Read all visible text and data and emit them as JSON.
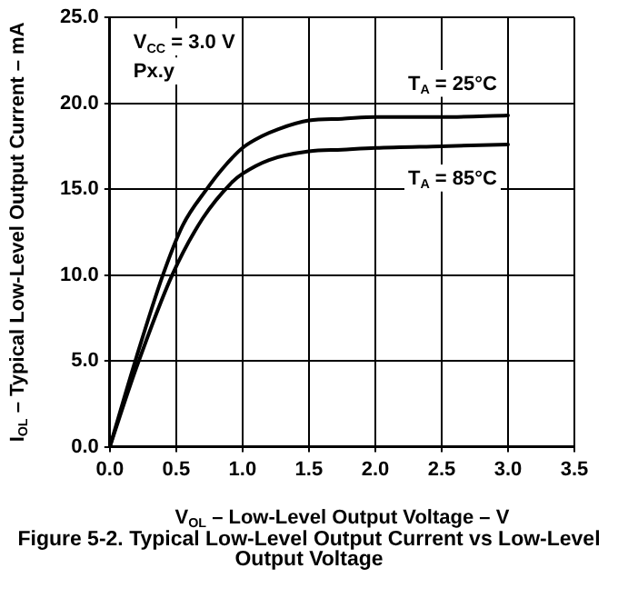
{
  "chart_data": {
    "type": "line",
    "title": "Figure 5-2. Typical Low-Level Output Current vs Low-Level Output Voltage",
    "xlabel": "V$_{OL}$ – Low-Level Output Voltage – V",
    "ylabel": "I$_{OL}$ – Typical Low-Level Output Current – mA",
    "annotations": [
      "V$_{CC}$ = 3.0 V",
      "Px.y"
    ],
    "series": [
      {
        "name": "T$_{A}$ = 25°C",
        "color": "#000000",
        "x": [
          0,
          0.2,
          0.4,
          0.55,
          0.73,
          0.85,
          1.0,
          1.15,
          1.27,
          1.5,
          1.75,
          2.0,
          2.5,
          3.0
        ],
        "values": [
          0,
          5.2,
          10,
          12.9,
          15,
          16.2,
          17.4,
          18.1,
          18.5,
          19.0,
          19.1,
          19.2,
          19.2,
          19.3
        ]
      },
      {
        "name": "T$_{A}$ = 85°C",
        "color": "#000000",
        "x": [
          0,
          0.2,
          0.47,
          0.7,
          0.92,
          1.0,
          1.2,
          1.5,
          1.75,
          2.0,
          2.5,
          3.0
        ],
        "values": [
          0,
          4.6,
          10,
          13.3,
          15.4,
          15.9,
          16.7,
          17.2,
          17.3,
          17.4,
          17.5,
          17.6
        ]
      }
    ],
    "xlim": [
      0,
      3.5
    ],
    "xticks": [
      {
        "value": 0,
        "label": "0.0"
      },
      {
        "value": 0.5,
        "label": "0.5"
      },
      {
        "value": 1,
        "label": "1.0"
      },
      {
        "value": 1.5,
        "label": "1.5"
      },
      {
        "value": 2,
        "label": "2.0"
      },
      {
        "value": 2.5,
        "label": "2.5"
      },
      {
        "value": 3,
        "label": "3.0"
      },
      {
        "value": 3.5,
        "label": "3.5"
      }
    ],
    "ylim": [
      0,
      25
    ],
    "yticks": [
      {
        "value": 0,
        "label": "0.0"
      },
      {
        "value": 5,
        "label": "5.0"
      },
      {
        "value": 10,
        "label": "10.0"
      },
      {
        "value": 15,
        "label": "15.0"
      },
      {
        "value": 20,
        "label": "20.0"
      },
      {
        "value": 25,
        "label": "25.0"
      }
    ],
    "grid": true,
    "legend": false,
    "marker": "none",
    "line_style": "solid"
  }
}
